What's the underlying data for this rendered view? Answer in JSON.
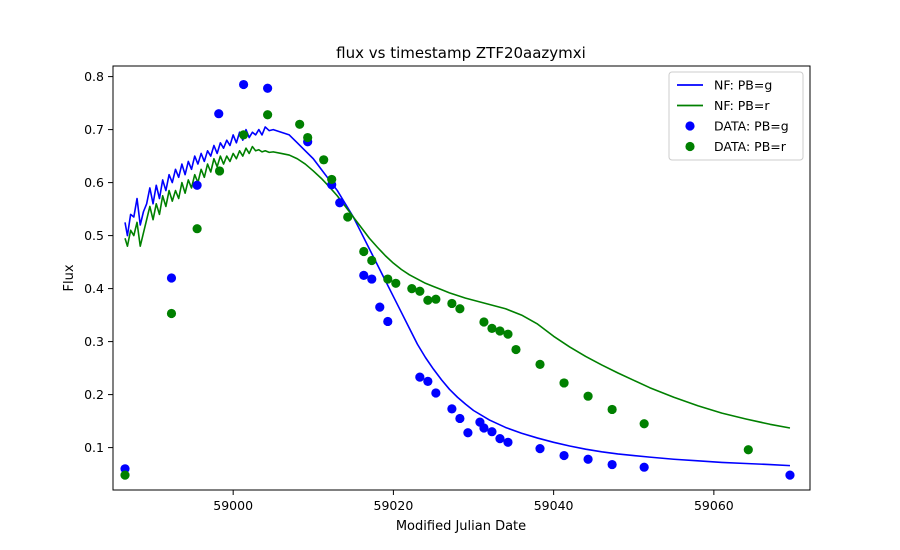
{
  "chart_data": {
    "type": "scatter",
    "title": "flux vs timestamp ZTF20aazymxi",
    "xlabel": "Modified Julian Date",
    "ylabel": "Flux",
    "xlim": [
      58985,
      59072
    ],
    "ylim": [
      0.02,
      0.82
    ],
    "xticks": [
      59000,
      59020,
      59040,
      59060
    ],
    "yticks": [
      0.1,
      0.2,
      0.3,
      0.4,
      0.5,
      0.6,
      0.7,
      0.8
    ],
    "grid": false,
    "legend_position": "top-right",
    "legend": [
      "NF: PB=g",
      "NF: PB=r",
      "DATA: PB=g",
      "DATA: PB=r"
    ],
    "colors": {
      "g": "#0000ff",
      "r": "#008000"
    },
    "lines": [
      {
        "name": "NF: PB=g",
        "color": "#0000ff",
        "x": [
          58986.5,
          58986.8,
          58987.2,
          58987.6,
          58988.0,
          58988.4,
          58988.8,
          58989.2,
          58989.6,
          58990.0,
          58990.4,
          58990.8,
          58991.2,
          58991.6,
          58992.0,
          58992.4,
          58992.8,
          58993.2,
          58993.6,
          58994.0,
          58994.4,
          58994.8,
          58995.2,
          58995.6,
          58996.0,
          58996.4,
          58996.8,
          58997.2,
          58997.6,
          58998.0,
          58998.4,
          58998.8,
          58999.2,
          58999.6,
          59000.0,
          59000.4,
          59000.8,
          59001.2,
          59001.6,
          59002.0,
          59002.4,
          59002.8,
          59003.2,
          59003.6,
          59004.0,
          59004.5,
          59005,
          59006,
          59007,
          59008,
          59009,
          59010,
          59011,
          59012,
          59013,
          59014,
          59015,
          59016,
          59017,
          59018,
          59019,
          59020,
          59021,
          59022,
          59023,
          59024,
          59025,
          59026,
          59027,
          59028,
          59029,
          59030,
          59032,
          59034,
          59036,
          59038,
          59040,
          59042,
          59044,
          59046,
          59048,
          59050,
          59052,
          59055,
          59058,
          59061,
          59064,
          59067,
          59069.5
        ],
        "y": [
          0.525,
          0.5,
          0.54,
          0.535,
          0.57,
          0.52,
          0.545,
          0.56,
          0.59,
          0.56,
          0.595,
          0.57,
          0.605,
          0.585,
          0.615,
          0.6,
          0.625,
          0.61,
          0.635,
          0.615,
          0.64,
          0.625,
          0.65,
          0.635,
          0.655,
          0.64,
          0.66,
          0.65,
          0.67,
          0.655,
          0.675,
          0.665,
          0.68,
          0.67,
          0.69,
          0.675,
          0.695,
          0.68,
          0.7,
          0.685,
          0.695,
          0.69,
          0.7,
          0.69,
          0.705,
          0.698,
          0.7,
          0.695,
          0.69,
          0.675,
          0.66,
          0.645,
          0.625,
          0.605,
          0.585,
          0.56,
          0.535,
          0.505,
          0.475,
          0.445,
          0.415,
          0.385,
          0.355,
          0.325,
          0.295,
          0.27,
          0.248,
          0.228,
          0.21,
          0.195,
          0.182,
          0.17,
          0.152,
          0.138,
          0.127,
          0.118,
          0.11,
          0.103,
          0.097,
          0.092,
          0.088,
          0.085,
          0.082,
          0.078,
          0.075,
          0.072,
          0.07,
          0.068,
          0.066
        ]
      },
      {
        "name": "NF: PB=r",
        "color": "#008000",
        "x": [
          58986.5,
          58986.8,
          58987.2,
          58987.6,
          58988.0,
          58988.4,
          58988.8,
          58989.2,
          58989.6,
          58990.0,
          58990.4,
          58990.8,
          58991.2,
          58991.6,
          58992.0,
          58992.4,
          58992.8,
          58993.2,
          58993.6,
          58994.0,
          58994.4,
          58994.8,
          58995.2,
          58995.6,
          58996.0,
          58996.4,
          58996.8,
          58997.2,
          58997.6,
          58998.0,
          58998.4,
          58998.8,
          58999.2,
          58999.6,
          59000.0,
          59000.4,
          59000.8,
          59001.2,
          59001.6,
          59002.0,
          59002.4,
          59002.8,
          59003.2,
          59003.6,
          59004.0,
          59004.5,
          59005,
          59006,
          59007,
          59008,
          59009,
          59010,
          59011,
          59012,
          59013,
          59014,
          59015,
          59016,
          59017,
          59018,
          59019,
          59020,
          59021,
          59022,
          59023,
          59024,
          59025,
          59026,
          59027,
          59028,
          59029,
          59030,
          59032,
          59034,
          59036,
          59038,
          59040,
          59042,
          59044,
          59046,
          59048,
          59050,
          59052,
          59055,
          59058,
          59061,
          59064,
          59067,
          59069.5
        ],
        "y": [
          0.495,
          0.48,
          0.51,
          0.5,
          0.525,
          0.48,
          0.505,
          0.53,
          0.555,
          0.53,
          0.56,
          0.54,
          0.575,
          0.555,
          0.585,
          0.565,
          0.585,
          0.57,
          0.6,
          0.58,
          0.605,
          0.59,
          0.615,
          0.6,
          0.625,
          0.61,
          0.635,
          0.62,
          0.645,
          0.63,
          0.65,
          0.635,
          0.65,
          0.64,
          0.655,
          0.645,
          0.66,
          0.65,
          0.665,
          0.655,
          0.668,
          0.66,
          0.662,
          0.658,
          0.66,
          0.657,
          0.658,
          0.655,
          0.652,
          0.645,
          0.635,
          0.622,
          0.608,
          0.592,
          0.575,
          0.555,
          0.535,
          0.515,
          0.495,
          0.478,
          0.462,
          0.448,
          0.436,
          0.426,
          0.418,
          0.41,
          0.404,
          0.398,
          0.392,
          0.387,
          0.382,
          0.378,
          0.37,
          0.362,
          0.35,
          0.333,
          0.31,
          0.29,
          0.272,
          0.256,
          0.241,
          0.227,
          0.213,
          0.195,
          0.179,
          0.165,
          0.154,
          0.144,
          0.137
        ]
      }
    ],
    "series": [
      {
        "name": "DATA: PB=g",
        "color": "#0000ff",
        "x": [
          58986.5,
          58992.3,
          58995.5,
          58998.2,
          59001.3,
          59004.3,
          59009.3,
          59012.3,
          59013.3,
          59016.3,
          59017.3,
          59018.3,
          59019.3,
          59023.3,
          59024.3,
          59025.3,
          59027.3,
          59028.3,
          59029.3,
          59030.8,
          59031.3,
          59032.3,
          59033.3,
          59034.3,
          59038.3,
          59041.3,
          59044.3,
          59047.3,
          59051.3,
          59069.5
        ],
        "y": [
          0.06,
          0.42,
          0.595,
          0.73,
          0.785,
          0.778,
          0.677,
          0.596,
          0.562,
          0.425,
          0.418,
          0.365,
          0.338,
          0.233,
          0.225,
          0.203,
          0.173,
          0.155,
          0.128,
          0.148,
          0.137,
          0.13,
          0.117,
          0.11,
          0.098,
          0.085,
          0.078,
          0.068,
          0.063,
          0.048
        ]
      },
      {
        "name": "DATA: PB=r",
        "color": "#008000",
        "x": [
          58986.5,
          58992.3,
          58995.5,
          58998.3,
          59001.3,
          59004.3,
          59008.3,
          59009.3,
          59011.3,
          59012.3,
          59014.3,
          59016.3,
          59017.3,
          59019.3,
          59020.3,
          59022.3,
          59023.3,
          59024.3,
          59025.3,
          59027.3,
          59028.3,
          59031.3,
          59032.3,
          59033.3,
          59034.3,
          59035.3,
          59038.3,
          59041.3,
          59044.3,
          59047.3,
          59051.3,
          59064.3
        ],
        "y": [
          0.048,
          0.353,
          0.513,
          0.622,
          0.69,
          0.728,
          0.71,
          0.685,
          0.643,
          0.606,
          0.535,
          0.47,
          0.453,
          0.418,
          0.41,
          0.4,
          0.395,
          0.378,
          0.38,
          0.372,
          0.362,
          0.337,
          0.325,
          0.32,
          0.314,
          0.285,
          0.257,
          0.222,
          0.197,
          0.172,
          0.145,
          0.096
        ]
      }
    ]
  }
}
